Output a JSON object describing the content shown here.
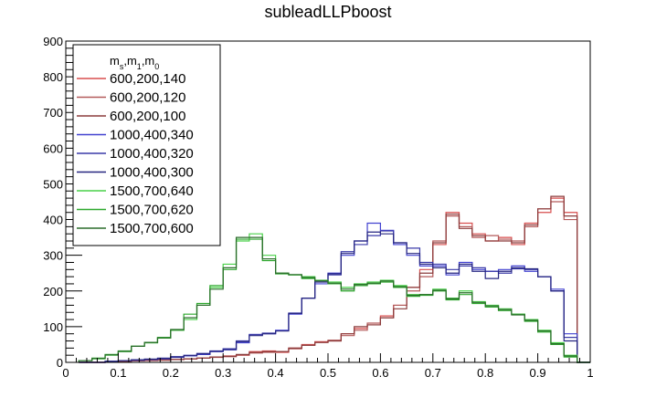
{
  "chart_data": {
    "type": "line",
    "title": "subleadLLPboost",
    "xlabel": "",
    "ylabel": "",
    "xlim": [
      0,
      1
    ],
    "ylim": [
      0,
      900
    ],
    "x_ticks": [
      "0",
      "0.1",
      "0.2",
      "0.3",
      "0.4",
      "0.5",
      "0.6",
      "0.7",
      "0.8",
      "0.9",
      "1"
    ],
    "y_ticks": [
      "0",
      "100",
      "200",
      "300",
      "400",
      "500",
      "600",
      "700",
      "800",
      "900"
    ],
    "grid": false,
    "legend_position": "top-left",
    "legend_title": {
      "base": "m",
      "subs": [
        "s",
        "1",
        "0"
      ]
    },
    "bin_edges": [
      0.025,
      0.05,
      0.075,
      0.1,
      0.125,
      0.15,
      0.175,
      0.2,
      0.225,
      0.25,
      0.275,
      0.3,
      0.325,
      0.35,
      0.375,
      0.4,
      0.425,
      0.45,
      0.475,
      0.5,
      0.525,
      0.55,
      0.575,
      0.6,
      0.625,
      0.65,
      0.675,
      0.7,
      0.725,
      0.75,
      0.775,
      0.8,
      0.825,
      0.85,
      0.875,
      0.9,
      0.925,
      0.95,
      0.975,
      1.0
    ],
    "series": [
      {
        "name": "600,200,140",
        "color": "#d84f4f",
        "values": [
          0,
          0,
          2,
          3,
          5,
          5,
          6,
          8,
          10,
          12,
          15,
          18,
          20,
          30,
          32,
          28,
          40,
          50,
          58,
          60,
          80,
          95,
          105,
          130,
          160,
          210,
          260,
          330,
          420,
          390,
          360,
          340,
          350,
          330,
          390,
          420,
          460,
          420,
          0
        ]
      },
      {
        "name": "600,200,120",
        "color": "#b35a5a",
        "values": [
          0,
          0,
          2,
          3,
          4,
          6,
          7,
          8,
          10,
          12,
          14,
          16,
          20,
          26,
          28,
          30,
          38,
          48,
          56,
          62,
          75,
          90,
          110,
          125,
          160,
          200,
          240,
          340,
          410,
          380,
          350,
          355,
          345,
          340,
          380,
          430,
          450,
          400,
          0
        ]
      },
      {
        "name": "600,200,100",
        "color": "#8b3b3b",
        "values": [
          0,
          0,
          2,
          3,
          5,
          6,
          7,
          8,
          10,
          12,
          15,
          17,
          22,
          28,
          30,
          30,
          40,
          48,
          56,
          60,
          80,
          100,
          105,
          125,
          150,
          210,
          250,
          335,
          415,
          375,
          355,
          340,
          340,
          335,
          385,
          430,
          465,
          410,
          0
        ]
      },
      {
        "name": "1000,400,340",
        "color": "#4242d0",
        "values": [
          0,
          0,
          3,
          5,
          6,
          8,
          10,
          14,
          18,
          22,
          30,
          35,
          55,
          78,
          80,
          90,
          135,
          180,
          220,
          250,
          300,
          340,
          390,
          370,
          330,
          300,
          270,
          270,
          245,
          280,
          260,
          255,
          260,
          270,
          255,
          240,
          205,
          80,
          0
        ]
      },
      {
        "name": "1000,400,320",
        "color": "#3a3aa8",
        "values": [
          0,
          0,
          3,
          5,
          7,
          9,
          12,
          16,
          20,
          25,
          32,
          38,
          60,
          78,
          82,
          88,
          138,
          180,
          230,
          245,
          310,
          330,
          355,
          368,
          335,
          320,
          280,
          275,
          260,
          270,
          265,
          255,
          250,
          262,
          260,
          240,
          200,
          70,
          0
        ]
      },
      {
        "name": "1000,400,300",
        "color": "#262680",
        "values": [
          0,
          0,
          3,
          5,
          7,
          9,
          11,
          15,
          19,
          24,
          31,
          36,
          58,
          75,
          80,
          88,
          137,
          180,
          225,
          248,
          305,
          340,
          365,
          360,
          335,
          305,
          275,
          265,
          250,
          275,
          255,
          235,
          255,
          265,
          262,
          240,
          200,
          60,
          0
        ]
      },
      {
        "name": "1500,700,640",
        "color": "#49d049",
        "values": [
          5,
          10,
          20,
          30,
          45,
          55,
          70,
          90,
          120,
          160,
          210,
          275,
          340,
          360,
          300,
          250,
          245,
          240,
          230,
          225,
          210,
          220,
          225,
          230,
          215,
          190,
          190,
          205,
          180,
          200,
          170,
          160,
          150,
          135,
          120,
          90,
          55,
          20,
          0
        ]
      },
      {
        "name": "1500,700,620",
        "color": "#2fa82f",
        "values": [
          5,
          12,
          22,
          32,
          45,
          55,
          68,
          90,
          135,
          165,
          215,
          260,
          345,
          345,
          285,
          248,
          245,
          235,
          230,
          220,
          200,
          215,
          220,
          225,
          210,
          185,
          188,
          200,
          175,
          190,
          165,
          155,
          145,
          135,
          115,
          85,
          50,
          15,
          0
        ]
      },
      {
        "name": "1500,700,600",
        "color": "#2a6b2a",
        "values": [
          5,
          11,
          21,
          31,
          45,
          56,
          69,
          92,
          125,
          160,
          205,
          265,
          350,
          350,
          290,
          250,
          246,
          238,
          228,
          222,
          205,
          218,
          222,
          228,
          212,
          188,
          190,
          202,
          178,
          195,
          168,
          158,
          148,
          133,
          118,
          88,
          52,
          18,
          0
        ]
      }
    ]
  }
}
